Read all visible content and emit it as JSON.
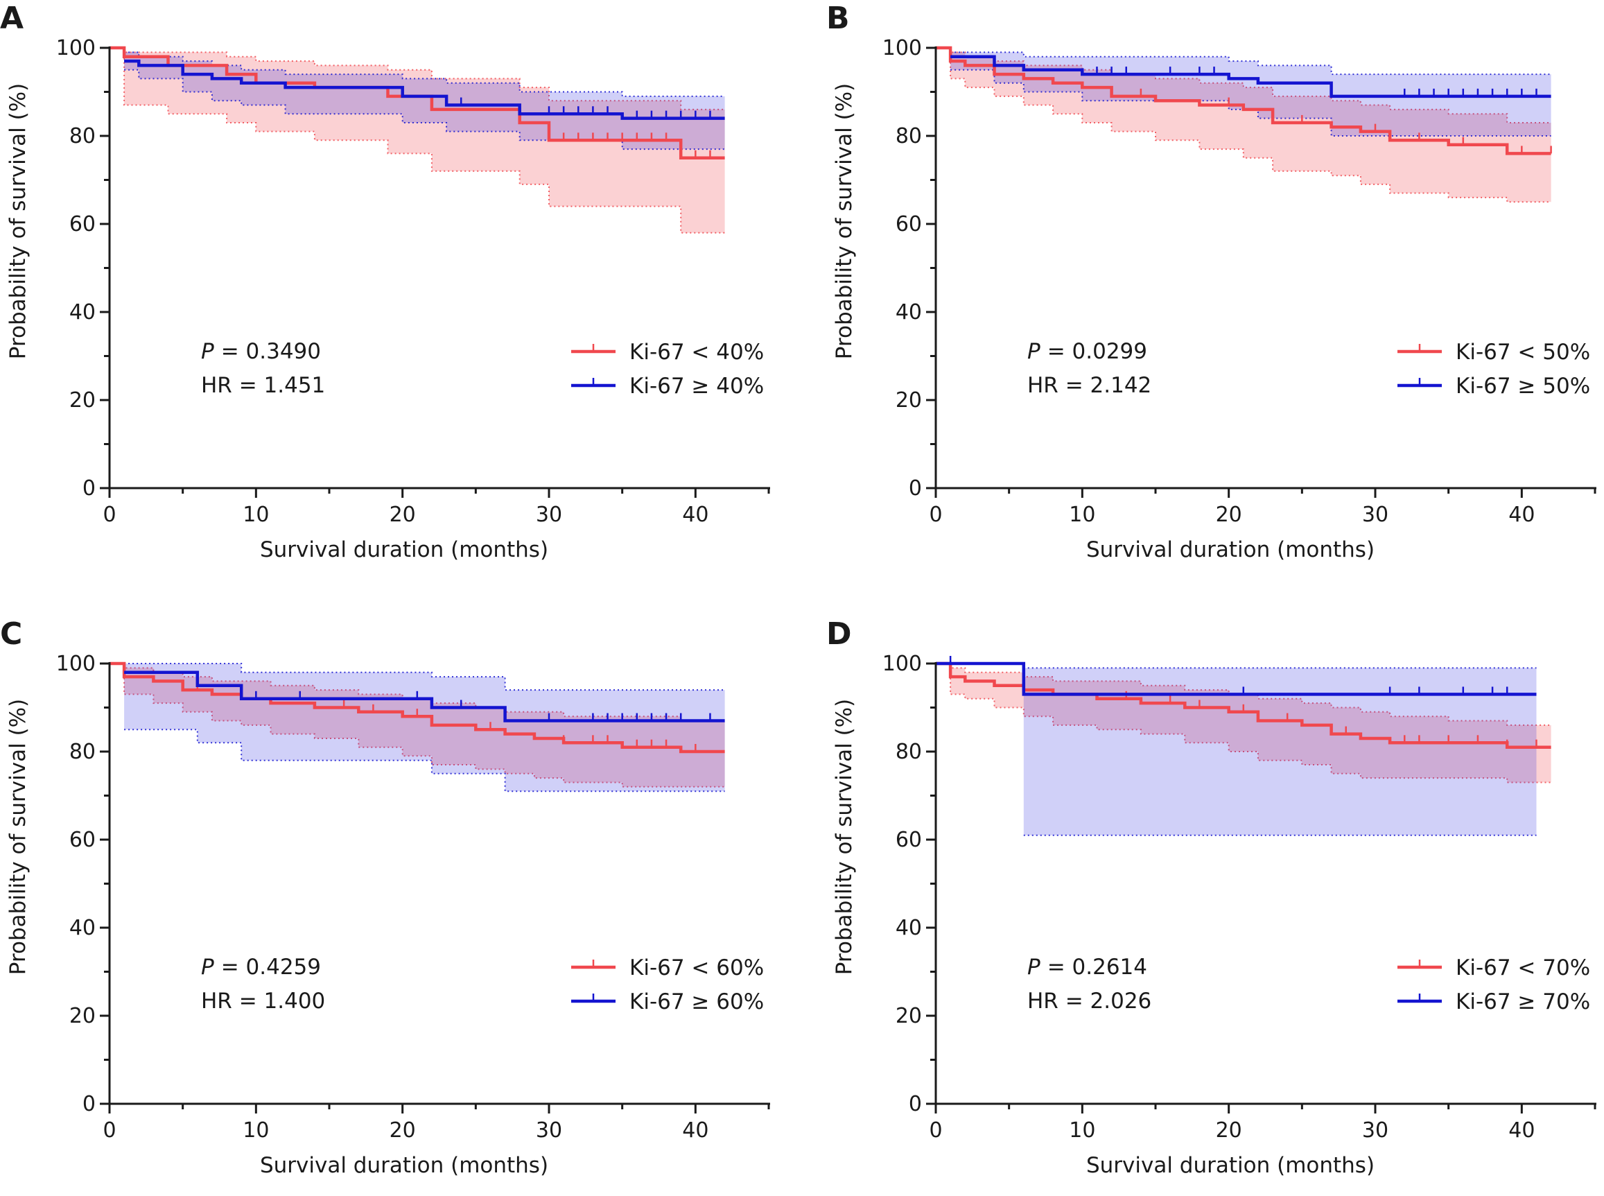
{
  "chart_data": [
    {
      "type": "line",
      "panel_label": "A",
      "xlabel": "Survival duration (months)",
      "ylabel": "Probability of survival (%)",
      "xlim": [
        0,
        45
      ],
      "ylim": [
        0,
        100
      ],
      "xticks": [
        0,
        10,
        20,
        30,
        40
      ],
      "yticks": [
        0,
        20,
        40,
        60,
        80,
        100
      ],
      "p_prefix": "P",
      "p_value": "= 0.3490",
      "hr_text": "HR = 1.451",
      "legend_position": "lower-right",
      "series": [
        {
          "name": "Ki-67 < 40%",
          "color": "#f0484e",
          "x": [
            0,
            1,
            4,
            8,
            10,
            14,
            19,
            22,
            28,
            30,
            39,
            42
          ],
          "y": [
            100,
            98,
            96,
            94,
            92,
            91,
            89,
            86,
            83,
            79,
            75,
            75
          ],
          "ci_lower": [
            100,
            87,
            85,
            83,
            81,
            79,
            76,
            72,
            69,
            64,
            58,
            58
          ],
          "ci_upper": [
            100,
            99,
            99,
            98,
            97,
            96,
            95,
            93,
            91,
            88,
            86,
            86
          ],
          "censor_x": [
            31,
            32,
            33,
            34,
            35,
            36,
            37,
            38,
            40,
            41
          ]
        },
        {
          "name": "Ki-67 ≥ 40%",
          "color": "#1414d0",
          "x": [
            1,
            2,
            5,
            7,
            9,
            12,
            20,
            23,
            28,
            35,
            42
          ],
          "y": [
            97,
            96,
            94,
            93,
            92,
            91,
            89,
            87,
            85,
            84,
            84
          ],
          "ci_lower": [
            95,
            93,
            90,
            88,
            87,
            85,
            83,
            81,
            79,
            77,
            77
          ],
          "ci_upper": [
            99,
            98,
            97,
            96,
            95,
            94,
            93,
            92,
            90,
            89,
            89
          ],
          "censor_x": [
            24,
            30,
            31,
            32,
            33,
            34,
            36,
            37,
            38,
            39,
            40,
            41
          ]
        }
      ]
    },
    {
      "type": "line",
      "panel_label": "B",
      "xlabel": "Survival duration (months)",
      "ylabel": "Probability of survival (%)",
      "xlim": [
        0,
        45
      ],
      "ylim": [
        0,
        100
      ],
      "xticks": [
        0,
        10,
        20,
        30,
        40
      ],
      "yticks": [
        0,
        20,
        40,
        60,
        80,
        100
      ],
      "p_prefix": "P",
      "p_value": "= 0.0299",
      "hr_text": "HR = 2.142",
      "legend_position": "lower-right",
      "series": [
        {
          "name": "Ki-67 < 50%",
          "color": "#f0484e",
          "x": [
            0,
            1,
            2,
            4,
            6,
            8,
            10,
            12,
            15,
            18,
            21,
            23,
            27,
            29,
            31,
            35,
            39,
            42
          ],
          "y": [
            100,
            97,
            96,
            94,
            93,
            92,
            91,
            89,
            88,
            87,
            86,
            83,
            82,
            81,
            79,
            78,
            76,
            76
          ],
          "ci_lower": [
            100,
            93,
            91,
            89,
            87,
            85,
            83,
            81,
            79,
            77,
            75,
            72,
            71,
            69,
            67,
            66,
            65,
            65
          ],
          "ci_upper": [
            100,
            99,
            98,
            97,
            96,
            96,
            95,
            94,
            93,
            92,
            91,
            89,
            88,
            87,
            86,
            85,
            83,
            83
          ],
          "censor_x": [
            14,
            20,
            25,
            30,
            33,
            36,
            40,
            42
          ]
        },
        {
          "name": "Ki-67 ≥ 50%",
          "color": "#1414d0",
          "x": [
            1,
            4,
            6,
            10,
            20,
            22,
            27,
            42
          ],
          "y": [
            98,
            96,
            95,
            94,
            93,
            92,
            89,
            89
          ],
          "ci_lower": [
            95,
            92,
            90,
            88,
            86,
            84,
            80,
            80
          ],
          "ci_upper": [
            99,
            99,
            98,
            98,
            97,
            96,
            94,
            94
          ],
          "censor_x": [
            11,
            12,
            13,
            16,
            18,
            19,
            32,
            33,
            34,
            35,
            36,
            37,
            38,
            39,
            40,
            41
          ]
        }
      ]
    },
    {
      "type": "line",
      "panel_label": "C",
      "xlabel": "Survival duration (months)",
      "ylabel": "Probability of survival (%)",
      "xlim": [
        0,
        45
      ],
      "ylim": [
        0,
        100
      ],
      "xticks": [
        0,
        10,
        20,
        30,
        40
      ],
      "yticks": [
        0,
        20,
        40,
        60,
        80,
        100
      ],
      "p_prefix": "P",
      "p_value": "= 0.4259",
      "hr_text": "HR = 1.400",
      "legend_position": "lower-right",
      "series": [
        {
          "name": "Ki-67 < 60%",
          "color": "#f0484e",
          "x": [
            0,
            1,
            3,
            5,
            7,
            9,
            11,
            14,
            17,
            20,
            22,
            25,
            27,
            29,
            31,
            35,
            39,
            42
          ],
          "y": [
            100,
            97,
            96,
            94,
            93,
            92,
            91,
            90,
            89,
            88,
            86,
            85,
            84,
            83,
            82,
            81,
            80,
            80
          ],
          "ci_lower": [
            100,
            93,
            91,
            89,
            87,
            86,
            84,
            83,
            81,
            79,
            77,
            76,
            75,
            74,
            73,
            72,
            72,
            72
          ],
          "ci_upper": [
            100,
            99,
            98,
            97,
            96,
            96,
            95,
            94,
            93,
            92,
            91,
            90,
            89,
            89,
            88,
            88,
            87,
            87
          ],
          "censor_x": [
            6,
            9,
            16,
            18,
            21,
            26,
            31,
            33,
            34,
            36,
            37,
            38,
            40
          ]
        },
        {
          "name": "Ki-67 ≥ 60%",
          "color": "#1414d0",
          "x": [
            1,
            6,
            9,
            22,
            27,
            42
          ],
          "y": [
            98,
            95,
            92,
            90,
            87,
            87
          ],
          "ci_lower": [
            85,
            82,
            78,
            75,
            71,
            71
          ],
          "ci_upper": [
            100,
            100,
            98,
            97,
            94,
            94
          ],
          "censor_x": [
            10,
            13,
            21,
            24,
            30,
            33,
            34,
            35,
            36,
            37,
            38,
            39,
            41
          ]
        }
      ]
    },
    {
      "type": "line",
      "panel_label": "D",
      "xlabel": "Survival duration (months)",
      "ylabel": "Probability of survival (%)",
      "xlim": [
        0,
        45
      ],
      "ylim": [
        0,
        100
      ],
      "xticks": [
        0,
        10,
        20,
        30,
        40
      ],
      "yticks": [
        0,
        20,
        40,
        60,
        80,
        100
      ],
      "p_prefix": "P",
      "p_value": "= 0.2614",
      "hr_text": "HR = 2.026",
      "legend_position": "lower-right",
      "series": [
        {
          "name": "Ki-67 < 70%",
          "color": "#f0484e",
          "x": [
            0,
            1,
            2,
            4,
            6,
            8,
            11,
            14,
            17,
            20,
            22,
            25,
            27,
            29,
            31,
            35,
            39,
            42
          ],
          "y": [
            100,
            97,
            96,
            95,
            94,
            93,
            92,
            91,
            90,
            89,
            87,
            86,
            84,
            83,
            82,
            82,
            81,
            81
          ],
          "ci_lower": [
            100,
            93,
            92,
            90,
            88,
            86,
            85,
            84,
            82,
            80,
            78,
            77,
            75,
            74,
            74,
            74,
            73,
            73
          ],
          "ci_upper": [
            100,
            99,
            98,
            98,
            97,
            96,
            96,
            95,
            94,
            93,
            92,
            91,
            90,
            89,
            88,
            87,
            86,
            86
          ],
          "censor_x": [
            13,
            16,
            18,
            21,
            24,
            28,
            32,
            33,
            35,
            37,
            39,
            41
          ]
        },
        {
          "name": "Ki-67 ≥ 70%",
          "color": "#1414d0",
          "x": [
            0,
            6,
            41
          ],
          "y": [
            100,
            93,
            93
          ],
          "ci_lower": [
            null,
            61,
            61
          ],
          "ci_upper": [
            null,
            99,
            99
          ],
          "censor_x": [
            1,
            21,
            31,
            33,
            36,
            38,
            39
          ]
        }
      ]
    }
  ]
}
